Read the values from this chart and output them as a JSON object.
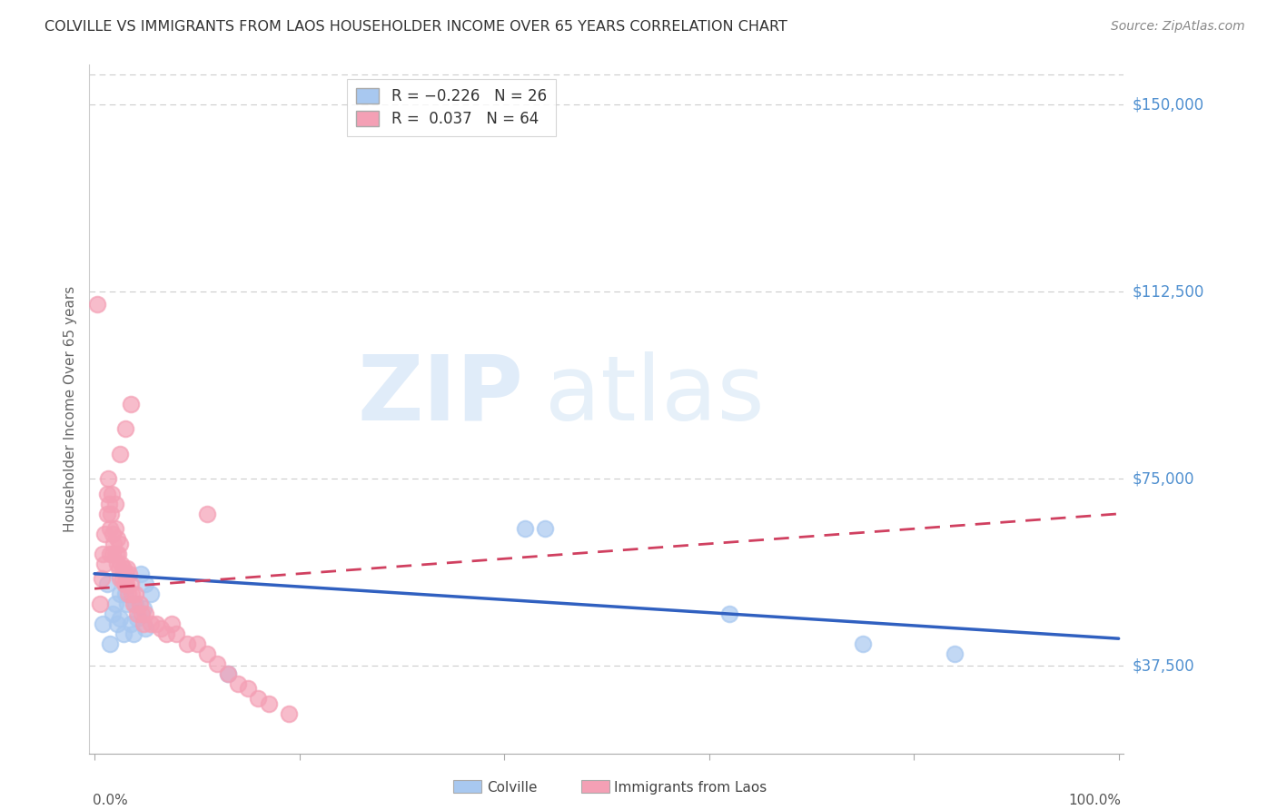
{
  "title": "COLVILLE VS IMMIGRANTS FROM LAOS HOUSEHOLDER INCOME OVER 65 YEARS CORRELATION CHART",
  "source": "Source: ZipAtlas.com",
  "ylabel": "Householder Income Over 65 years",
  "ytick_labels": [
    "$37,500",
    "$75,000",
    "$112,500",
    "$150,000"
  ],
  "ytick_values": [
    37500,
    75000,
    112500,
    150000
  ],
  "ymin": 20000,
  "ymax": 158000,
  "xmin": -0.005,
  "xmax": 1.005,
  "color_blue": "#A8C8F0",
  "color_pink": "#F4A0B5",
  "trendline_blue": "#3060C0",
  "trendline_pink": "#D04060",
  "watermark_zip": "ZIP",
  "watermark_atlas": "atlas",
  "blue_x": [
    0.008,
    0.012,
    0.015,
    0.018,
    0.02,
    0.022,
    0.025,
    0.025,
    0.028,
    0.03,
    0.032,
    0.035,
    0.038,
    0.04,
    0.042,
    0.045,
    0.048,
    0.05,
    0.05,
    0.055,
    0.13,
    0.42,
    0.44,
    0.62,
    0.75,
    0.84
  ],
  "blue_y": [
    46000,
    54000,
    42000,
    48000,
    50000,
    46000,
    52000,
    47000,
    44000,
    52000,
    50000,
    46000,
    44000,
    50000,
    47000,
    56000,
    49000,
    45000,
    54000,
    52000,
    36000,
    65000,
    65000,
    48000,
    42000,
    40000
  ],
  "pink_x": [
    0.003,
    0.005,
    0.007,
    0.008,
    0.01,
    0.01,
    0.012,
    0.012,
    0.013,
    0.014,
    0.015,
    0.015,
    0.016,
    0.017,
    0.018,
    0.018,
    0.019,
    0.02,
    0.02,
    0.021,
    0.022,
    0.022,
    0.023,
    0.024,
    0.025,
    0.025,
    0.026,
    0.027,
    0.028,
    0.029,
    0.03,
    0.031,
    0.032,
    0.033,
    0.034,
    0.035,
    0.036,
    0.038,
    0.04,
    0.042,
    0.044,
    0.046,
    0.048,
    0.05,
    0.055,
    0.06,
    0.065,
    0.07,
    0.075,
    0.08,
    0.09,
    0.1,
    0.11,
    0.12,
    0.13,
    0.14,
    0.15,
    0.16,
    0.17,
    0.19,
    0.025,
    0.03,
    0.035,
    0.11
  ],
  "pink_y": [
    110000,
    50000,
    55000,
    60000,
    58000,
    64000,
    68000,
    72000,
    75000,
    70000,
    65000,
    60000,
    68000,
    72000,
    64000,
    60000,
    62000,
    70000,
    65000,
    60000,
    58000,
    63000,
    60000,
    57000,
    62000,
    55000,
    58000,
    55000,
    57000,
    54000,
    56000,
    54000,
    57000,
    52000,
    56000,
    54000,
    52000,
    50000,
    52000,
    48000,
    50000,
    48000,
    46000,
    48000,
    46000,
    46000,
    45000,
    44000,
    46000,
    44000,
    42000,
    42000,
    40000,
    38000,
    36000,
    34000,
    33000,
    31000,
    30000,
    28000,
    80000,
    85000,
    90000,
    68000
  ]
}
